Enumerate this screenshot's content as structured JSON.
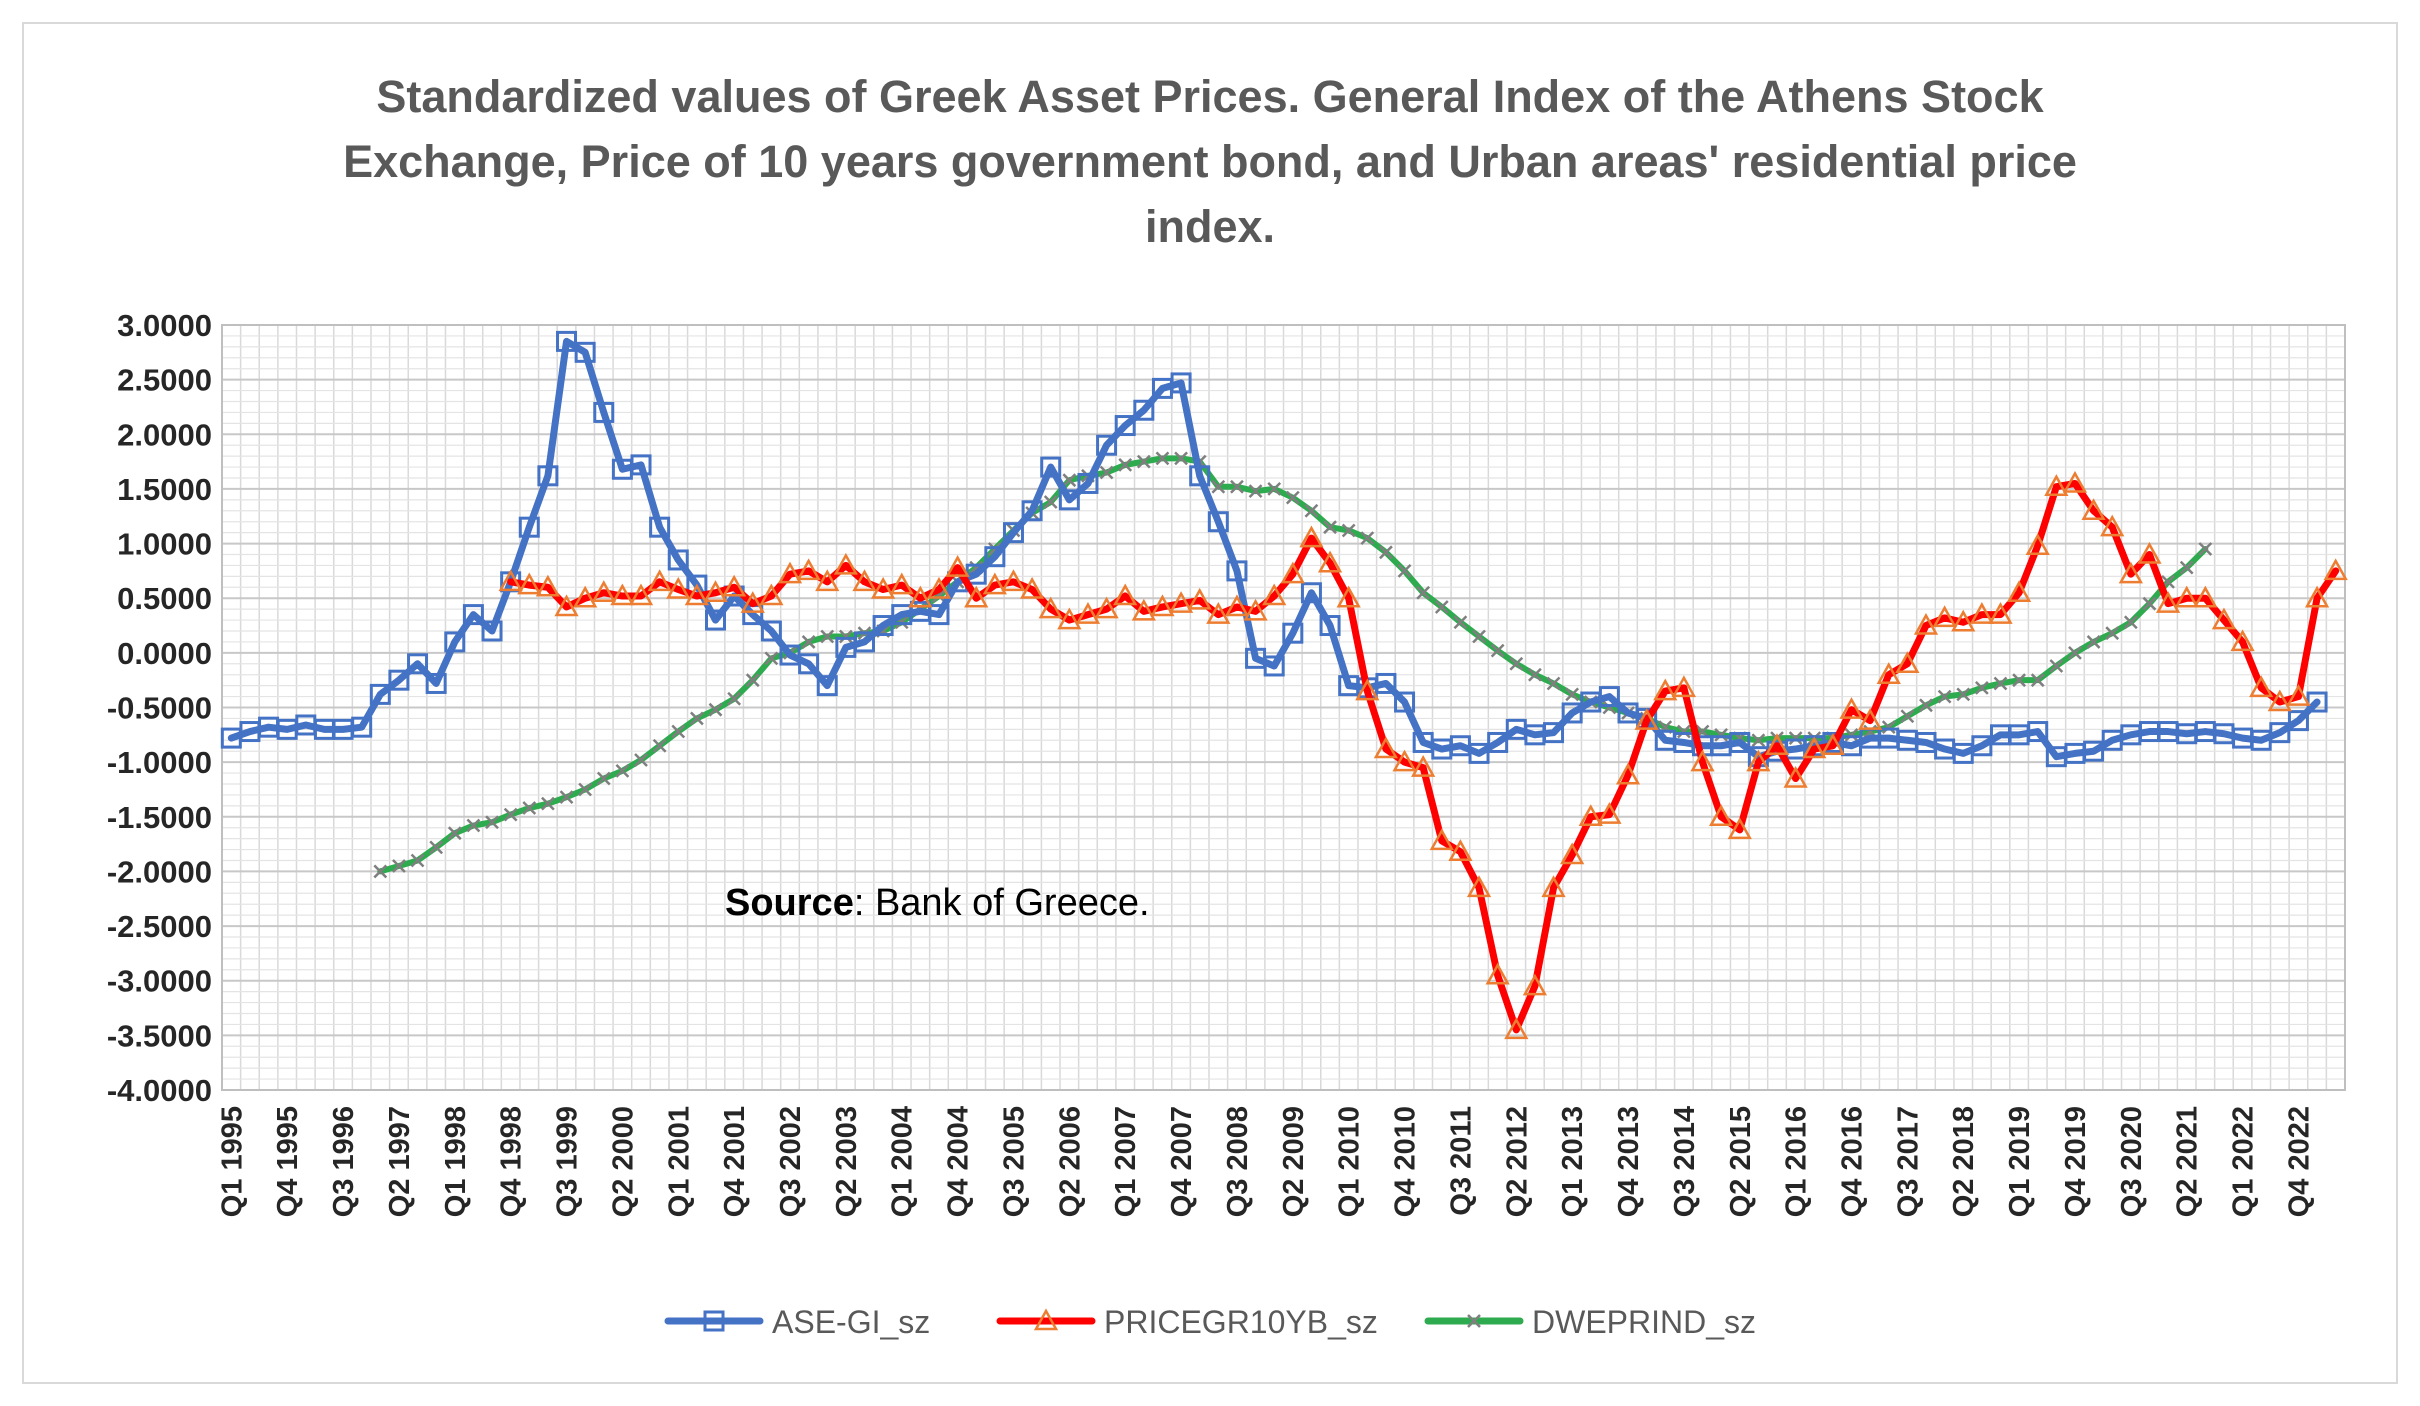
{
  "chart_data": {
    "type": "line",
    "title_lines": [
      "Standardized values of Greek Asset Prices. General Index of the Athens Stock",
      "Exchange,  Price of 10 years government bond, and Urban areas' residential price",
      "index."
    ],
    "source_label": "Source",
    "source_text": ": Bank of Greece.",
    "ylim": [
      -4,
      3
    ],
    "y_ticks": [
      "3.0000",
      "2.5000",
      "2.0000",
      "1.5000",
      "1.0000",
      "0.5000",
      "0.0000",
      "-0.5000",
      "-1.0000",
      "-1.5000",
      "-2.0000",
      "-2.5000",
      "-3.0000",
      "-3.5000",
      "-4.0000"
    ],
    "x_tick_labels": [
      "Q1 1995",
      "Q4 1995",
      "Q3 1996",
      "Q2 1997",
      "Q1 1998",
      "Q4 1998",
      "Q3 1999",
      "Q2 2000",
      "Q1 2001",
      "Q4 2001",
      "Q3 2002",
      "Q2 2003",
      "Q1 2004",
      "Q4 2004",
      "Q3 2005",
      "Q2 2006",
      "Q1 2007",
      "Q4 2007",
      "Q3 2008",
      "Q2 2009",
      "Q1 2010",
      "Q4 2010",
      "Q3 2011",
      "Q2 2012",
      "Q1 2013",
      "Q4 2013",
      "Q3 2014",
      "Q2 2015",
      "Q1 2016",
      "Q4 2016",
      "Q3 2017",
      "Q2 2018",
      "Q1 2019",
      "Q4 2019",
      "Q3 2020",
      "Q2 2021",
      "Q1 2022",
      "Q4 2022"
    ],
    "n_quarters": 114,
    "grid": true,
    "legend_position": "bottom",
    "series": [
      {
        "name": "ASE-GI_sz",
        "color": "#4472C4",
        "marker": "square",
        "start_index": 0,
        "values": [
          -0.78,
          -0.72,
          -0.68,
          -0.7,
          -0.66,
          -0.7,
          -0.7,
          -0.68,
          -0.38,
          -0.25,
          -0.1,
          -0.28,
          0.1,
          0.35,
          0.2,
          0.65,
          1.15,
          1.62,
          2.85,
          2.75,
          2.2,
          1.68,
          1.72,
          1.15,
          0.85,
          0.62,
          0.3,
          0.52,
          0.35,
          0.2,
          -0.02,
          -0.1,
          -0.3,
          0.05,
          0.1,
          0.25,
          0.35,
          0.38,
          0.35,
          0.65,
          0.72,
          0.88,
          1.1,
          1.3,
          1.7,
          1.4,
          1.55,
          1.9,
          2.08,
          2.22,
          2.42,
          2.47,
          1.62,
          1.2,
          0.75,
          -0.05,
          -0.12,
          0.18,
          0.55,
          0.25,
          -0.3,
          -0.32,
          -0.28,
          -0.45,
          -0.82,
          -0.88,
          -0.85,
          -0.92,
          -0.82,
          -0.7,
          -0.75,
          -0.73,
          -0.55,
          -0.45,
          -0.4,
          -0.55,
          -0.6,
          -0.8,
          -0.82,
          -0.85,
          -0.85,
          -0.82,
          -0.95,
          -0.9,
          -0.88,
          -0.85,
          -0.82,
          -0.85,
          -0.78,
          -0.78,
          -0.8,
          -0.82,
          -0.88,
          -0.92,
          -0.85,
          -0.75,
          -0.75,
          -0.72,
          -0.95,
          -0.92,
          -0.9,
          -0.8,
          -0.75,
          -0.72,
          -0.72,
          -0.74,
          -0.72,
          -0.74,
          -0.78,
          -0.8,
          -0.73,
          -0.62,
          -0.45
        ]
      },
      {
        "name": "PRICEGR10YB_sz",
        "color": "#FF0000",
        "marker": "triangle",
        "start_index": 15,
        "values": [
          0.65,
          0.62,
          0.6,
          0.42,
          0.5,
          0.55,
          0.52,
          0.52,
          0.65,
          0.58,
          0.52,
          0.55,
          0.6,
          0.45,
          0.52,
          0.72,
          0.75,
          0.65,
          0.8,
          0.65,
          0.58,
          0.62,
          0.5,
          0.58,
          0.78,
          0.5,
          0.62,
          0.65,
          0.58,
          0.4,
          0.3,
          0.35,
          0.4,
          0.52,
          0.38,
          0.42,
          0.45,
          0.48,
          0.35,
          0.42,
          0.38,
          0.52,
          0.72,
          1.05,
          0.82,
          0.5,
          -0.35,
          -0.88,
          -1.0,
          -1.05,
          -1.72,
          -1.82,
          -2.15,
          -2.95,
          -3.45,
          -3.05,
          -2.15,
          -1.85,
          -1.5,
          -1.48,
          -1.12,
          -0.62,
          -0.35,
          -0.32,
          -1.0,
          -1.5,
          -1.62,
          -1.0,
          -0.85,
          -1.15,
          -0.88,
          -0.85,
          -0.52,
          -0.62,
          -0.2,
          -0.1,
          0.25,
          0.32,
          0.28,
          0.35,
          0.35,
          0.55,
          0.98,
          1.52,
          1.55,
          1.3,
          1.15,
          0.72,
          0.9,
          0.45,
          0.5,
          0.5,
          0.3,
          0.1,
          -0.32,
          -0.45,
          -0.4,
          0.5,
          0.75
        ]
      },
      {
        "name": "DWEPRIND_sz",
        "color": "#2EAA4F",
        "marker": "x",
        "start_index": 8,
        "values": [
          -2.0,
          -1.95,
          -1.9,
          -1.78,
          -1.65,
          -1.58,
          -1.55,
          -1.48,
          -1.42,
          -1.38,
          -1.32,
          -1.25,
          -1.15,
          -1.08,
          -0.98,
          -0.85,
          -0.72,
          -0.6,
          -0.52,
          -0.42,
          -0.25,
          -0.05,
          0.0,
          0.1,
          0.15,
          0.15,
          0.18,
          0.2,
          0.28,
          0.4,
          0.52,
          0.65,
          0.78,
          0.95,
          1.12,
          1.28,
          1.38,
          1.58,
          1.62,
          1.65,
          1.72,
          1.75,
          1.78,
          1.78,
          1.75,
          1.52,
          1.52,
          1.48,
          1.5,
          1.42,
          1.3,
          1.15,
          1.12,
          1.05,
          0.92,
          0.75,
          0.55,
          0.42,
          0.28,
          0.15,
          0.02,
          -0.1,
          -0.2,
          -0.28,
          -0.38,
          -0.45,
          -0.5,
          -0.55,
          -0.6,
          -0.68,
          -0.72,
          -0.72,
          -0.75,
          -0.78,
          -0.8,
          -0.78,
          -0.78,
          -0.78,
          -0.78,
          -0.75,
          -0.72,
          -0.68,
          -0.58,
          -0.48,
          -0.4,
          -0.38,
          -0.32,
          -0.28,
          -0.25,
          -0.25,
          -0.12,
          0.0,
          0.1,
          0.18,
          0.28,
          0.45,
          0.65,
          0.78,
          0.95
        ]
      }
    ]
  }
}
